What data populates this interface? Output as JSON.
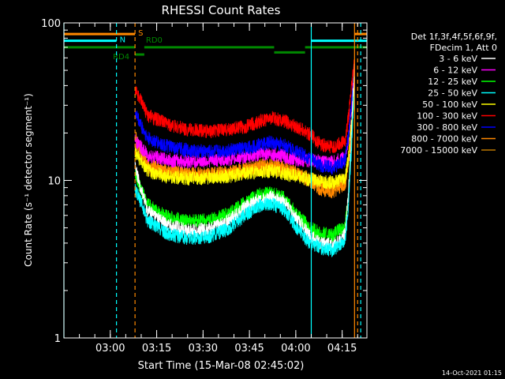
{
  "chart_data": {
    "type": "line",
    "title": "RHESSI Count Rates",
    "xlabel": "Start Time (15-Mar-08 02:45:02)",
    "ylabel": "Count Rate (s⁻¹ detector segment⁻¹)",
    "yscale": "log",
    "ylim": [
      1,
      100
    ],
    "xlim": [
      "02:45",
      "04:23"
    ],
    "x_ticks": [
      "03:00",
      "03:15",
      "03:30",
      "03:45",
      "04:00",
      "04:15"
    ],
    "y_ticks": [
      "1",
      "10",
      "100"
    ],
    "legend_header": [
      "Det 1f,3f,4f,5f,6f,9f,",
      "FDecim 1, Att 0"
    ],
    "legend_placement": "right",
    "timestamp": "14-Oct-2021 01:15",
    "x": [
      "03:08",
      "03:12",
      "03:18",
      "03:25",
      "03:32",
      "03:38",
      "03:44",
      "03:48",
      "03:52",
      "03:56",
      "04:00",
      "04:04",
      "04:08",
      "04:12",
      "04:16",
      "04:17",
      "04:18",
      "04:19"
    ],
    "series": [
      {
        "name": "3 - 6 keV",
        "color": "#ffffff",
        "values": [
          12,
          6.5,
          5.3,
          4.8,
          4.9,
          5.5,
          6.8,
          7.6,
          7.8,
          7.3,
          5.8,
          4.6,
          4.0,
          3.9,
          4.6,
          8,
          20,
          55
        ]
      },
      {
        "name": "6 - 12 keV",
        "color": "#ff00ff",
        "values": [
          18,
          14.5,
          13.5,
          13.2,
          13.4,
          13.6,
          14.2,
          14.6,
          14.8,
          14.2,
          13.6,
          13.4,
          13.2,
          13.0,
          14.0,
          18,
          30,
          50
        ]
      },
      {
        "name": "12 - 25 keV",
        "color": "#00ff00",
        "values": [
          11,
          7.0,
          5.9,
          5.5,
          5.6,
          6.1,
          7.3,
          8.1,
          8.3,
          7.8,
          6.2,
          5.1,
          4.6,
          4.5,
          5.2,
          8,
          18,
          45
        ]
      },
      {
        "name": "25 - 50 keV",
        "color": "#00ffff",
        "values": [
          9,
          5.6,
          4.6,
          4.3,
          4.4,
          4.9,
          6.1,
          6.9,
          7.1,
          6.6,
          5.1,
          4.1,
          3.7,
          3.6,
          4.2,
          7,
          16,
          40
        ]
      },
      {
        "name": "50 - 100 keV",
        "color": "#ffff00",
        "values": [
          15,
          11.5,
          10.6,
          10.3,
          10.4,
          10.6,
          11.1,
          11.4,
          11.5,
          11.1,
          10.6,
          10.2,
          9.9,
          9.7,
          10.4,
          14,
          24,
          40
        ]
      },
      {
        "name": "100 - 300 keV",
        "color": "#ff0000",
        "values": [
          38,
          26,
          23,
          21,
          20.5,
          21,
          22,
          23.5,
          25,
          24,
          22,
          20,
          17,
          16,
          18,
          25,
          38,
          58
        ]
      },
      {
        "name": "300 - 800 keV",
        "color": "#0000ff",
        "values": [
          27,
          18.5,
          16.5,
          15.5,
          15.2,
          15.5,
          16,
          16.8,
          17.5,
          16.8,
          15.5,
          14,
          12.5,
          12,
          13.5,
          19,
          30,
          50
        ]
      },
      {
        "name": "800 - 7000 keV",
        "color": "#ff8800",
        "values": [
          19,
          12.5,
          11.5,
          11,
          11,
          11.2,
          11.8,
          12.3,
          12.6,
          12.1,
          11.2,
          10,
          8.8,
          8.5,
          9.5,
          13,
          22,
          38
        ]
      },
      {
        "name": "7000 - 15000 keV",
        "color": "#bb7700",
        "values": [
          17,
          11.8,
          11.2,
          11,
          11,
          11.1,
          11.4,
          11.7,
          11.9,
          11.5,
          11,
          10.4,
          9.8,
          9.5,
          10.2,
          13,
          20,
          35
        ]
      }
    ],
    "attenuator_bars": [
      {
        "label": "S",
        "color": "#ff8800",
        "start": "02:45",
        "end": "03:08",
        "level": 85
      },
      {
        "label": "",
        "color": "#ff8800",
        "start": "04:19",
        "end": "04:23",
        "level": 85
      },
      {
        "label": "N",
        "color": "#00ffff",
        "start": "02:45",
        "end": "03:02",
        "level": 77
      },
      {
        "label": "",
        "color": "#00ffff",
        "start": "04:05",
        "end": "04:23",
        "level": 77
      },
      {
        "label": "RD4",
        "color": "#008800",
        "start": "03:08",
        "end": "03:11",
        "level": 63
      },
      {
        "label": "",
        "color": "#008800",
        "start": "02:45",
        "end": "03:08",
        "level": 70
      },
      {
        "label": "RD0",
        "color": "#008800",
        "start": "03:11",
        "end": "03:53",
        "level": 70
      },
      {
        "label": "",
        "color": "#008800",
        "start": "03:53",
        "end": "04:03",
        "level": 65
      },
      {
        "label": "",
        "color": "#008800",
        "start": "04:03",
        "end": "04:23",
        "level": 70
      }
    ],
    "vertical_markers": [
      {
        "time": "02:45",
        "color": "#00ffff",
        "style": "solid"
      },
      {
        "time": "03:02",
        "color": "#00ffff",
        "style": "dashed"
      },
      {
        "time": "03:08",
        "color": "#ff8800",
        "style": "dashed"
      },
      {
        "time": "04:05",
        "color": "#00ffff",
        "style": "solid"
      },
      {
        "time": "04:19",
        "color": "#ff8800",
        "style": "solid"
      },
      {
        "time": "04:20",
        "color": "#ff8800",
        "style": "dashed"
      },
      {
        "time": "04:21",
        "color": "#00ffff",
        "style": "dashed"
      }
    ]
  }
}
